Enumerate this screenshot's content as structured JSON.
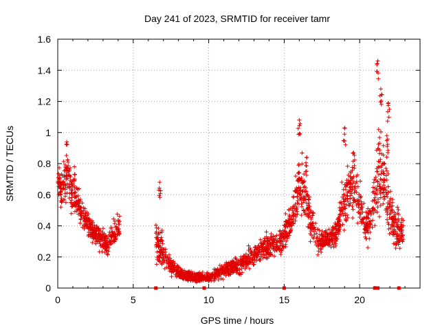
{
  "chart_data": {
    "type": "scatter",
    "title": "Day 241 of 2023, SRMTID for receiver tamr",
    "xlabel": "GPS time / hours",
    "ylabel": "SRMTID / TECUs",
    "xlim": [
      0,
      24
    ],
    "ylim": [
      0,
      1.6
    ],
    "xticks": [
      "0",
      "5",
      "10",
      "15",
      "20"
    ],
    "yticks": [
      "0",
      "0.2",
      "0.4",
      "0.6",
      "0.8",
      "1",
      "1.2",
      "1.4",
      "1.6"
    ],
    "grid": true,
    "marker": "+",
    "color": "#e00000",
    "segments": [
      {
        "x": [
          0.0,
          0.3,
          0.6,
          0.9,
          1.2,
          1.5,
          1.8,
          2.1,
          2.4,
          2.7,
          3.0,
          3.3,
          3.6,
          3.9,
          4.1
        ],
        "y": [
          0.7,
          0.6,
          0.75,
          0.62,
          0.55,
          0.5,
          0.45,
          0.4,
          0.36,
          0.33,
          0.3,
          0.28,
          0.33,
          0.38,
          0.4
        ],
        "spread": [
          0.1,
          0.2,
          0.25,
          0.18,
          0.15,
          0.14,
          0.13,
          0.12,
          0.1,
          0.1,
          0.1,
          0.1,
          0.12,
          0.12,
          0.1
        ]
      },
      {
        "x": [
          6.5,
          6.8,
          7.1,
          7.5,
          8.0,
          8.5,
          9.0,
          9.5,
          10.0,
          10.5,
          11.0,
          11.5,
          12.0,
          12.5,
          13.0,
          13.5,
          14.0,
          14.5,
          15.0
        ],
        "y": [
          0.3,
          0.25,
          0.18,
          0.14,
          0.1,
          0.08,
          0.07,
          0.07,
          0.07,
          0.09,
          0.11,
          0.13,
          0.15,
          0.18,
          0.22,
          0.25,
          0.28,
          0.28,
          0.32
        ],
        "spread": [
          0.22,
          0.2,
          0.12,
          0.08,
          0.06,
          0.05,
          0.05,
          0.04,
          0.04,
          0.05,
          0.06,
          0.07,
          0.08,
          0.09,
          0.1,
          0.1,
          0.12,
          0.12,
          0.12
        ]
      },
      {
        "x": [
          15.0,
          15.5,
          16.0,
          16.4,
          16.8,
          17.2,
          17.6,
          18.0,
          18.4,
          18.8,
          19.2,
          19.6,
          20.0,
          20.4,
          20.8,
          21.2,
          21.5,
          21.8,
          22.2,
          22.6,
          22.9
        ],
        "y": [
          0.35,
          0.45,
          0.65,
          0.6,
          0.4,
          0.3,
          0.3,
          0.32,
          0.35,
          0.5,
          0.6,
          0.65,
          0.55,
          0.4,
          0.45,
          0.8,
          0.7,
          0.6,
          0.4,
          0.35,
          0.35
        ],
        "spread": [
          0.12,
          0.15,
          0.25,
          0.25,
          0.18,
          0.12,
          0.1,
          0.1,
          0.12,
          0.18,
          0.25,
          0.2,
          0.2,
          0.15,
          0.2,
          0.5,
          0.3,
          0.3,
          0.18,
          0.15,
          0.15
        ]
      }
    ],
    "peaks": [
      {
        "x": 0.6,
        "y": 0.94
      },
      {
        "x": 1.1,
        "y": 0.78
      },
      {
        "x": 6.75,
        "y": 0.68
      },
      {
        "x": 16.0,
        "y": 1.08
      },
      {
        "x": 16.5,
        "y": 0.84
      },
      {
        "x": 19.0,
        "y": 1.03
      },
      {
        "x": 19.6,
        "y": 0.87
      },
      {
        "x": 21.2,
        "y": 1.46
      },
      {
        "x": 21.4,
        "y": 1.28
      },
      {
        "x": 21.9,
        "y": 1.19
      },
      {
        "x": 21.8,
        "y": 0.98
      },
      {
        "x": 22.5,
        "y": 0.52
      }
    ],
    "baseline_markers": [
      6.5,
      9.7,
      15.0,
      21.0,
      21.2,
      22.6
    ]
  }
}
